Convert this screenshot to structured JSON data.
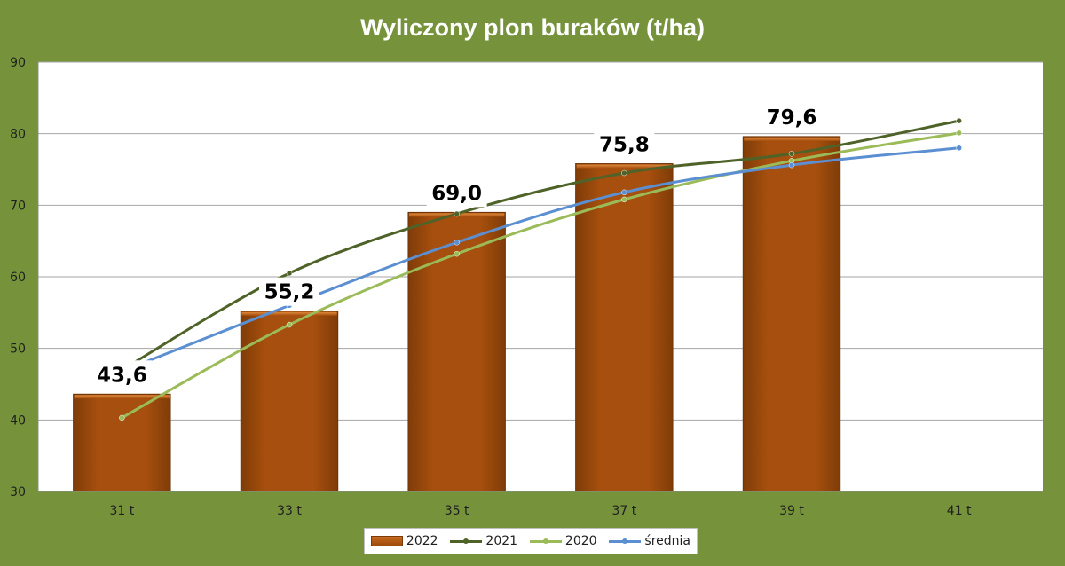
{
  "chart_data": {
    "type": "bar",
    "title": "Wyliczony plon buraków (t/ha)",
    "xlabel": "",
    "ylabel": "",
    "categories": [
      "31 t",
      "33 t",
      "35 t",
      "37 t",
      "39 t",
      "41 t"
    ],
    "ylim": [
      30,
      90
    ],
    "yticks": [
      30,
      40,
      50,
      60,
      70,
      80,
      90
    ],
    "grid": true,
    "legend_position": "bottom",
    "series": [
      {
        "name": "2022",
        "type": "bar",
        "color": "#9c4a0b",
        "values": [
          43.6,
          55.2,
          69.0,
          75.8,
          79.6,
          null
        ],
        "labels": [
          "43,6",
          "55,2",
          "69,0",
          "75,8",
          "79,6",
          ""
        ]
      },
      {
        "name": "2021",
        "type": "line",
        "color": "#4f6228",
        "values": [
          47.0,
          60.5,
          68.8,
          74.5,
          77.2,
          81.8
        ]
      },
      {
        "name": "2020",
        "type": "line",
        "color": "#9bbb59",
        "values": [
          40.3,
          53.3,
          63.2,
          70.8,
          76.2,
          80.1
        ]
      },
      {
        "name": "średnia",
        "type": "line",
        "color": "#5b8fd2",
        "values": [
          46.8,
          56.0,
          64.8,
          71.8,
          75.6,
          78.0
        ]
      }
    ]
  }
}
